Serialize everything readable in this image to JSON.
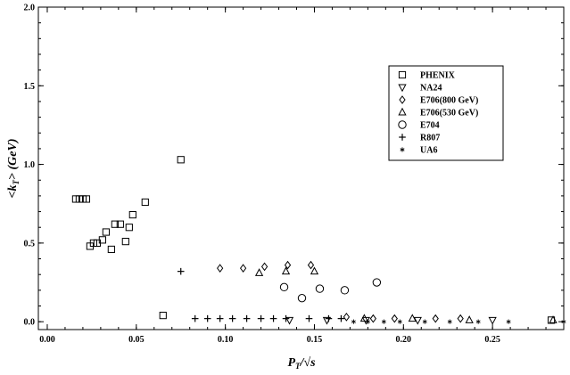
{
  "chart_data": {
    "type": "scatter",
    "title": "",
    "xlabel": "P_T/√s",
    "ylabel": "<k_T> (GeV)",
    "xlim": [
      -0.005,
      0.29
    ],
    "ylim": [
      -0.05,
      2.0
    ],
    "x_ticks": [
      "0.00",
      "0.05",
      "0.10",
      "0.15",
      "0.20",
      "0.25"
    ],
    "x_tick_values": [
      0.0,
      0.05,
      0.1,
      0.15,
      0.2,
      0.25
    ],
    "y_ticks": [
      "0.0",
      "0.5",
      "1.0",
      "1.5",
      "2.0"
    ],
    "y_tick_values": [
      0.0,
      0.5,
      1.0,
      1.5,
      2.0
    ],
    "grid": false,
    "legend_position": "top-right",
    "series": [
      {
        "name": "PHENIX",
        "marker": "square",
        "points": [
          [
            0.016,
            0.78
          ],
          [
            0.018,
            0.78
          ],
          [
            0.02,
            0.78
          ],
          [
            0.022,
            0.78
          ],
          [
            0.024,
            0.48
          ],
          [
            0.026,
            0.5
          ],
          [
            0.028,
            0.5
          ],
          [
            0.031,
            0.52
          ],
          [
            0.033,
            0.57
          ],
          [
            0.036,
            0.46
          ],
          [
            0.038,
            0.62
          ],
          [
            0.041,
            0.62
          ],
          [
            0.044,
            0.51
          ],
          [
            0.046,
            0.6
          ],
          [
            0.048,
            0.68
          ],
          [
            0.055,
            0.76
          ],
          [
            0.075,
            1.03
          ],
          [
            0.065,
            0.04
          ],
          [
            0.283,
            0.01
          ]
        ]
      },
      {
        "name": "NA24",
        "marker": "triangle-down",
        "points": [
          [
            0.136,
            0.01
          ],
          [
            0.157,
            0.01
          ],
          [
            0.179,
            0.01
          ],
          [
            0.208,
            0.01
          ],
          [
            0.25,
            0.01
          ]
        ]
      },
      {
        "name": "E706(800 GeV)",
        "marker": "diamond",
        "points": [
          [
            0.097,
            0.34
          ],
          [
            0.11,
            0.34
          ],
          [
            0.122,
            0.35
          ],
          [
            0.135,
            0.36
          ],
          [
            0.148,
            0.36
          ],
          [
            0.168,
            0.03
          ],
          [
            0.183,
            0.02
          ],
          [
            0.195,
            0.02
          ],
          [
            0.218,
            0.02
          ],
          [
            0.232,
            0.02
          ]
        ]
      },
      {
        "name": "E706(530 GeV)",
        "marker": "triangle-up",
        "points": [
          [
            0.119,
            0.31
          ],
          [
            0.134,
            0.32
          ],
          [
            0.15,
            0.32
          ],
          [
            0.178,
            0.02
          ],
          [
            0.205,
            0.02
          ],
          [
            0.237,
            0.01
          ],
          [
            0.284,
            0.01
          ]
        ]
      },
      {
        "name": "E704",
        "marker": "circle",
        "points": [
          [
            0.133,
            0.22
          ],
          [
            0.143,
            0.15
          ],
          [
            0.153,
            0.21
          ],
          [
            0.167,
            0.2
          ],
          [
            0.185,
            0.25
          ]
        ]
      },
      {
        "name": "R807",
        "marker": "plus",
        "points": [
          [
            0.075,
            0.32
          ],
          [
            0.083,
            0.02
          ],
          [
            0.09,
            0.02
          ],
          [
            0.097,
            0.02
          ],
          [
            0.104,
            0.02
          ],
          [
            0.112,
            0.02
          ],
          [
            0.12,
            0.02
          ],
          [
            0.127,
            0.02
          ],
          [
            0.134,
            0.02
          ],
          [
            0.147,
            0.02
          ],
          [
            0.158,
            0.02
          ],
          [
            0.165,
            0.02
          ]
        ]
      },
      {
        "name": "UA6",
        "marker": "asterisk",
        "points": [
          [
            0.172,
            0.0
          ],
          [
            0.18,
            0.0
          ],
          [
            0.189,
            0.0
          ],
          [
            0.198,
            0.0
          ],
          [
            0.212,
            0.0
          ],
          [
            0.226,
            0.0
          ],
          [
            0.242,
            0.0
          ],
          [
            0.259,
            0.0
          ],
          [
            0.29,
            0.0
          ]
        ]
      }
    ]
  }
}
